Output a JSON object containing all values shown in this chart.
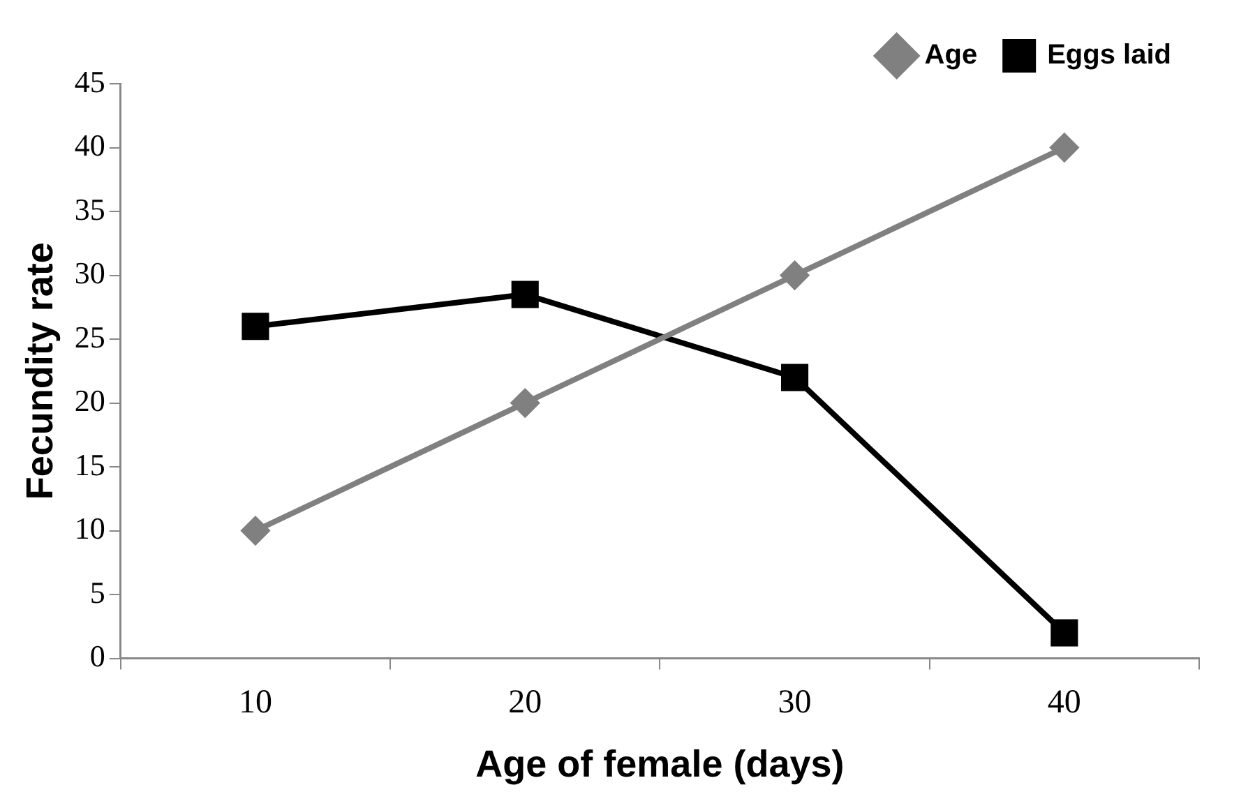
{
  "chart_data": {
    "type": "line",
    "xlabel": "Age of female (days)",
    "ylabel": "Fecundity rate",
    "categories": [
      "10",
      "20",
      "30",
      "40"
    ],
    "series": [
      {
        "name": "Age",
        "color": "#808080",
        "marker": "diamond",
        "values": [
          10,
          20,
          30,
          40
        ]
      },
      {
        "name": "Eggs laid",
        "color": "#000000",
        "marker": "square",
        "values": [
          26,
          28.5,
          22,
          2
        ]
      }
    ],
    "ylim": [
      0,
      45
    ],
    "yticks": [
      0,
      5,
      10,
      15,
      20,
      25,
      30,
      35,
      40,
      45
    ],
    "grid": false,
    "legend": "top right",
    "line_style": "solid"
  }
}
